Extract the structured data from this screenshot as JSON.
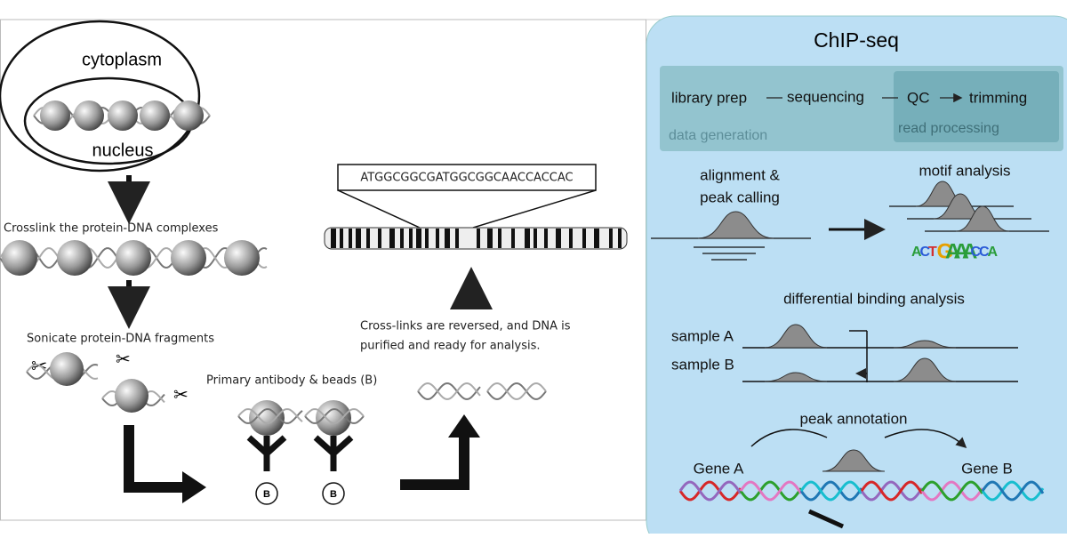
{
  "left_panel": {
    "cell": {
      "outer_label": "cytoplasm",
      "inner_label": "nucleus"
    },
    "steps": {
      "crosslink": "Crosslink the protein-DNA complexes",
      "sonicate": "Sonicate protein-DNA fragments",
      "antibody": "Primary antibody & beads (B)",
      "bead_labels": [
        "B",
        "B"
      ],
      "reverse": [
        "Cross-links are reversed, and DNA is",
        "purified and ready for analysis."
      ]
    },
    "sequence": "ATGGCGGCGATGGCGGCAACCACCAC"
  },
  "right_panel": {
    "title": "ChIP-seq",
    "pipeline": {
      "steps": [
        "library prep",
        "sequencing",
        "QC",
        "trimming"
      ],
      "groups": [
        "data generation",
        "read processing"
      ]
    },
    "alignment": [
      "alignment &",
      "peak calling"
    ],
    "motif": {
      "title": "motif analysis",
      "logo": [
        "A",
        "C",
        "T",
        "G",
        "A",
        "A",
        "A",
        "C",
        "C",
        "A"
      ]
    },
    "differential": {
      "title": "differential binding analysis",
      "samples": [
        "sample A",
        "sample B"
      ]
    },
    "annotation": {
      "title": "peak annotation",
      "genes": [
        "Gene A",
        "Gene B"
      ]
    }
  }
}
